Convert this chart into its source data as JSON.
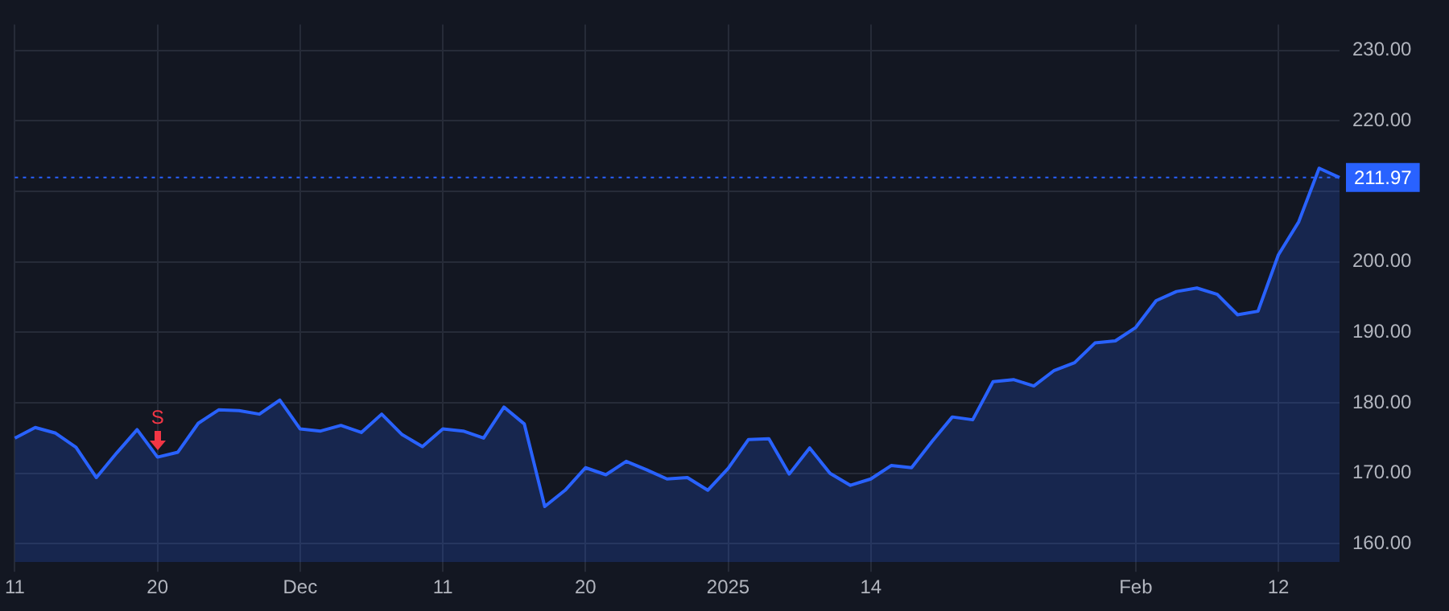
{
  "chart_data": {
    "type": "area",
    "categories": [
      "11",
      null,
      null,
      null,
      null,
      null,
      null,
      "20",
      null,
      null,
      null,
      null,
      null,
      null,
      "Dec",
      null,
      null,
      null,
      null,
      null,
      null,
      "11",
      null,
      null,
      null,
      null,
      null,
      null,
      "20",
      null,
      null,
      null,
      null,
      null,
      null,
      "2025",
      null,
      null,
      null,
      null,
      null,
      null,
      "14",
      null,
      null,
      null,
      null,
      null,
      null,
      null,
      null,
      null,
      null,
      null,
      null,
      "Feb",
      null,
      null,
      null,
      null,
      null,
      null,
      "12",
      null,
      null,
      null
    ],
    "values": [
      175.0,
      176.5,
      175.7,
      173.7,
      169.4,
      172.9,
      176.2,
      172.3,
      173.0,
      177.1,
      179.0,
      178.9,
      178.4,
      180.4,
      176.3,
      176.0,
      176.8,
      175.8,
      178.4,
      175.5,
      173.8,
      176.3,
      176.0,
      175.0,
      179.4,
      177.0,
      165.3,
      167.6,
      170.8,
      169.8,
      171.7,
      170.5,
      169.2,
      169.4,
      167.6,
      170.7,
      174.8,
      174.9,
      169.9,
      173.6,
      170.0,
      168.3,
      169.2,
      171.1,
      170.8,
      174.5,
      178.0,
      177.6,
      183.0,
      183.3,
      182.4,
      184.6,
      185.7,
      188.5,
      188.8,
      190.7,
      194.5,
      195.8,
      196.3,
      195.4,
      192.5,
      193.0,
      201.0,
      205.7,
      213.3,
      211.97
    ],
    "color": "#2962ff",
    "ylim": [
      157.4,
      233.7
    ],
    "yticks": [
      {
        "value": 160,
        "label": "160.00"
      },
      {
        "value": 170,
        "label": "170.00"
      },
      {
        "value": 180,
        "label": "180.00"
      },
      {
        "value": 190,
        "label": "190.00"
      },
      {
        "value": 200,
        "label": "200.00"
      },
      {
        "value": 210,
        "label": null
      },
      {
        "value": 220,
        "label": "220.00"
      },
      {
        "value": 230,
        "label": "230.00"
      }
    ],
    "grid": true,
    "ref_lines": [
      {
        "axis": "y",
        "value": 211.97,
        "label": "211.97",
        "color": "#2962ff",
        "line_style": "dotted"
      }
    ],
    "annotations": [
      {
        "text": "S",
        "x": "20",
        "y": 172.3
      }
    ]
  }
}
